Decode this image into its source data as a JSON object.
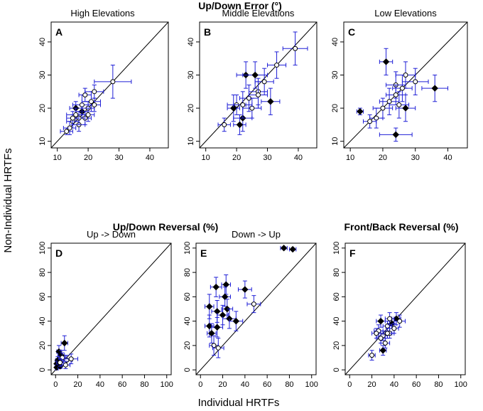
{
  "figure": {
    "ylabel": "Non-Individual HRTFs",
    "xlabel": "Individual HRTFs",
    "group_titles": {
      "updown_error": "Up/Down Error (°)",
      "updown_reversal": "Up/Down Reversal (%)",
      "frontback_reversal": "Front/Back Reversal (%)"
    },
    "colors": {
      "errorbar": "#1f1fd6",
      "marker": "#000000",
      "axis": "#000000"
    }
  },
  "chart_data": [
    {
      "type": "scatter",
      "panel": "A",
      "title": "High Elevations",
      "xlim": [
        8,
        46
      ],
      "ylim": [
        8,
        46
      ],
      "ticks": [
        10,
        20,
        30,
        40
      ],
      "points": [
        {
          "x": 16,
          "y": 20,
          "xe": 2,
          "ye": 2,
          "f": 1
        },
        {
          "x": 18,
          "y": 19,
          "xe": 2,
          "ye": 2,
          "f": 1
        },
        {
          "x": 15,
          "y": 16,
          "xe": 2,
          "ye": 2,
          "f": 0
        },
        {
          "x": 14,
          "y": 14,
          "xe": 2,
          "ye": 2,
          "f": 0
        },
        {
          "x": 13,
          "y": 13,
          "xe": 2,
          "ye": 1,
          "f": 0
        },
        {
          "x": 17,
          "y": 15,
          "xe": 2,
          "ye": 2,
          "f": 0
        },
        {
          "x": 16,
          "y": 18,
          "xe": 3,
          "ye": 2,
          "f": 0
        },
        {
          "x": 19,
          "y": 17,
          "xe": 2,
          "ye": 2,
          "f": 0
        },
        {
          "x": 18,
          "y": 21,
          "xe": 3,
          "ye": 3,
          "f": 0
        },
        {
          "x": 20,
          "y": 20,
          "xe": 2,
          "ye": 2,
          "f": 0
        },
        {
          "x": 21,
          "y": 22,
          "xe": 3,
          "ye": 3,
          "f": 0
        },
        {
          "x": 19,
          "y": 24,
          "xe": 2,
          "ye": 2,
          "f": 0
        },
        {
          "x": 22,
          "y": 25,
          "xe": 3,
          "ye": 2,
          "f": 0
        },
        {
          "x": 20,
          "y": 18,
          "xe": 2,
          "ye": 2,
          "f": 0
        },
        {
          "x": 17,
          "y": 17,
          "xe": 2,
          "ye": 2,
          "f": 0
        },
        {
          "x": 22,
          "y": 21,
          "xe": 2,
          "ye": 2,
          "f": 0
        },
        {
          "x": 28,
          "y": 28,
          "xe": 6,
          "ye": 5,
          "f": 0
        },
        {
          "x": 15,
          "y": 17,
          "xe": 2,
          "ye": 2,
          "f": 0
        }
      ]
    },
    {
      "type": "scatter",
      "panel": "B",
      "title": "Middle Elevations",
      "xlim": [
        8,
        46
      ],
      "ylim": [
        8,
        46
      ],
      "ticks": [
        10,
        20,
        30,
        40
      ],
      "points": [
        {
          "x": 23,
          "y": 30,
          "xe": 3,
          "ye": 4,
          "f": 1
        },
        {
          "x": 26,
          "y": 30,
          "xe": 4,
          "ye": 4,
          "f": 1
        },
        {
          "x": 22,
          "y": 17,
          "xe": 3,
          "ye": 4,
          "f": 1
        },
        {
          "x": 31,
          "y": 22,
          "xe": 3,
          "ye": 4,
          "f": 1
        },
        {
          "x": 19,
          "y": 20,
          "xe": 2,
          "ye": 4,
          "f": 1
        },
        {
          "x": 21,
          "y": 15,
          "xe": 2,
          "ye": 3,
          "f": 1
        },
        {
          "x": 39,
          "y": 38,
          "xe": 4,
          "ye": 5,
          "f": 0
        },
        {
          "x": 33,
          "y": 33,
          "xe": 3,
          "ye": 4,
          "f": 0
        },
        {
          "x": 29,
          "y": 28,
          "xe": 3,
          "ye": 4,
          "f": 0
        },
        {
          "x": 27,
          "y": 25,
          "xe": 3,
          "ye": 4,
          "f": 0
        },
        {
          "x": 24,
          "y": 23,
          "xe": 3,
          "ye": 4,
          "f": 0
        },
        {
          "x": 20,
          "y": 21,
          "xe": 3,
          "ye": 3,
          "f": 0
        },
        {
          "x": 16,
          "y": 15,
          "xe": 2,
          "ye": 2,
          "f": 0
        },
        {
          "x": 25,
          "y": 20,
          "xe": 3,
          "ye": 3,
          "f": 0
        },
        {
          "x": 22,
          "y": 21,
          "xe": 3,
          "ye": 4,
          "f": 0
        },
        {
          "x": 27,
          "y": 24,
          "xe": 3,
          "ye": 4,
          "f": 0
        }
      ]
    },
    {
      "type": "scatter",
      "panel": "C",
      "title": "Low Elevations",
      "xlim": [
        8,
        46
      ],
      "ylim": [
        8,
        46
      ],
      "ticks": [
        10,
        20,
        30,
        40
      ],
      "points": [
        {
          "x": 21,
          "y": 34,
          "xe": 2,
          "ye": 4,
          "f": 1
        },
        {
          "x": 36,
          "y": 26,
          "xe": 4,
          "ye": 4,
          "f": 1
        },
        {
          "x": 13,
          "y": 19,
          "xe": 1,
          "ye": 1,
          "f": 1
        },
        {
          "x": 27,
          "y": 20,
          "xe": 3,
          "ye": 4,
          "f": 1
        },
        {
          "x": 24,
          "y": 12,
          "xe": 5,
          "ye": 2,
          "f": 1
        },
        {
          "x": 24,
          "y": 27,
          "xe": 3,
          "ye": 4,
          "f": 0
        },
        {
          "x": 27,
          "y": 30,
          "xe": 3,
          "ye": 4,
          "f": 0
        },
        {
          "x": 30,
          "y": 28,
          "xe": 4,
          "ye": 4,
          "f": 0
        },
        {
          "x": 26,
          "y": 26,
          "xe": 3,
          "ye": 4,
          "f": 0
        },
        {
          "x": 22,
          "y": 22,
          "xe": 3,
          "ye": 4,
          "f": 0
        },
        {
          "x": 20,
          "y": 20,
          "xe": 3,
          "ye": 3,
          "f": 0
        },
        {
          "x": 18,
          "y": 17,
          "xe": 2,
          "ye": 3,
          "f": 0
        },
        {
          "x": 24,
          "y": 24,
          "xe": 3,
          "ye": 3,
          "f": 0
        },
        {
          "x": 25,
          "y": 21,
          "xe": 3,
          "ye": 4,
          "f": 0
        },
        {
          "x": 16,
          "y": 16,
          "xe": 2,
          "ye": 2,
          "f": 0
        }
      ]
    },
    {
      "type": "scatter",
      "panel": "D",
      "title": "Up -> Down",
      "xlim": [
        -4,
        104
      ],
      "ylim": [
        -4,
        104
      ],
      "ticks": [
        0,
        20,
        40,
        60,
        80,
        100
      ],
      "points": [
        {
          "x": 8,
          "y": 22,
          "xe": 3,
          "ye": 6,
          "f": 1
        },
        {
          "x": 3,
          "y": 15,
          "xe": 2,
          "ye": 5,
          "f": 1
        },
        {
          "x": 5,
          "y": 12,
          "xe": 3,
          "ye": 4,
          "f": 1
        },
        {
          "x": 2,
          "y": 8,
          "xe": 2,
          "ye": 3,
          "f": 1
        },
        {
          "x": 1,
          "y": 5,
          "xe": 1,
          "ye": 2,
          "f": 1
        },
        {
          "x": 1,
          "y": 2,
          "xe": 1,
          "ye": 2,
          "f": 1
        },
        {
          "x": 4,
          "y": 3,
          "xe": 2,
          "ye": 2,
          "f": 1
        },
        {
          "x": 6,
          "y": 10,
          "xe": 3,
          "ye": 4,
          "f": 0
        },
        {
          "x": 10,
          "y": 8,
          "xe": 5,
          "ye": 4,
          "f": 0
        },
        {
          "x": 14,
          "y": 9,
          "xe": 6,
          "ye": 4,
          "f": 0
        },
        {
          "x": 9,
          "y": 4,
          "xe": 4,
          "ye": 3,
          "f": 0
        },
        {
          "x": 4,
          "y": 6,
          "xe": 3,
          "ye": 3,
          "f": 0
        }
      ]
    },
    {
      "type": "scatter",
      "panel": "E",
      "title": "Down -> Up",
      "xlim": [
        -4,
        104
      ],
      "ylim": [
        -4,
        104
      ],
      "ticks": [
        0,
        20,
        40,
        60,
        80,
        100
      ],
      "points": [
        {
          "x": 75,
          "y": 100,
          "xe": 3,
          "ye": 1,
          "f": 1
        },
        {
          "x": 83,
          "y": 99,
          "xe": 3,
          "ye": 1,
          "f": 1
        },
        {
          "x": 23,
          "y": 70,
          "xe": 4,
          "ye": 8,
          "f": 1
        },
        {
          "x": 14,
          "y": 68,
          "xe": 5,
          "ye": 8,
          "f": 1
        },
        {
          "x": 40,
          "y": 66,
          "xe": 6,
          "ye": 7,
          "f": 1
        },
        {
          "x": 22,
          "y": 60,
          "xe": 5,
          "ye": 8,
          "f": 1
        },
        {
          "x": 8,
          "y": 52,
          "xe": 4,
          "ye": 10,
          "f": 1
        },
        {
          "x": 24,
          "y": 50,
          "xe": 5,
          "ye": 8,
          "f": 1
        },
        {
          "x": 15,
          "y": 48,
          "xe": 5,
          "ye": 9,
          "f": 1
        },
        {
          "x": 20,
          "y": 45,
          "xe": 5,
          "ye": 8,
          "f": 1
        },
        {
          "x": 26,
          "y": 42,
          "xe": 6,
          "ye": 8,
          "f": 1
        },
        {
          "x": 8,
          "y": 36,
          "xe": 4,
          "ye": 9,
          "f": 1
        },
        {
          "x": 15,
          "y": 35,
          "xe": 5,
          "ye": 8,
          "f": 1
        },
        {
          "x": 32,
          "y": 40,
          "xe": 6,
          "ye": 8,
          "f": 1
        },
        {
          "x": 10,
          "y": 30,
          "xe": 4,
          "ye": 8,
          "f": 1
        },
        {
          "x": 12,
          "y": 20,
          "xe": 4,
          "ye": 8,
          "f": 0
        },
        {
          "x": 48,
          "y": 54,
          "xe": 6,
          "ye": 7,
          "f": 0
        },
        {
          "x": 16,
          "y": 18,
          "xe": 5,
          "ye": 8,
          "f": 0
        }
      ]
    },
    {
      "type": "scatter",
      "panel": "F",
      "title": "",
      "xlim": [
        -4,
        104
      ],
      "ylim": [
        -4,
        104
      ],
      "ticks": [
        0,
        20,
        40,
        60,
        80,
        100
      ],
      "points": [
        {
          "x": 28,
          "y": 40,
          "xe": 4,
          "ye": 5,
          "f": 1
        },
        {
          "x": 42,
          "y": 42,
          "xe": 4,
          "ye": 5,
          "f": 1
        },
        {
          "x": 38,
          "y": 38,
          "xe": 4,
          "ye": 4,
          "f": 1
        },
        {
          "x": 30,
          "y": 16,
          "xe": 3,
          "ye": 4,
          "f": 1
        },
        {
          "x": 26,
          "y": 32,
          "xe": 4,
          "ye": 5,
          "f": 0
        },
        {
          "x": 34,
          "y": 36,
          "xe": 4,
          "ye": 4,
          "f": 0
        },
        {
          "x": 36,
          "y": 30,
          "xe": 4,
          "ye": 4,
          "f": 0
        },
        {
          "x": 45,
          "y": 40,
          "xe": 5,
          "ye": 5,
          "f": 0
        },
        {
          "x": 30,
          "y": 28,
          "xe": 4,
          "ye": 4,
          "f": 0
        },
        {
          "x": 32,
          "y": 22,
          "xe": 4,
          "ye": 4,
          "f": 0
        },
        {
          "x": 40,
          "y": 34,
          "xe": 4,
          "ye": 4,
          "f": 0
        },
        {
          "x": 28,
          "y": 26,
          "xe": 4,
          "ye": 4,
          "f": 0
        },
        {
          "x": 20,
          "y": 12,
          "xe": 3,
          "ye": 4,
          "f": 0
        },
        {
          "x": 34,
          "y": 30,
          "xe": 4,
          "ye": 4,
          "f": 0
        },
        {
          "x": 36,
          "y": 42,
          "xe": 4,
          "ye": 5,
          "f": 0
        },
        {
          "x": 24,
          "y": 30,
          "xe": 4,
          "ye": 4,
          "f": 0
        }
      ]
    }
  ]
}
